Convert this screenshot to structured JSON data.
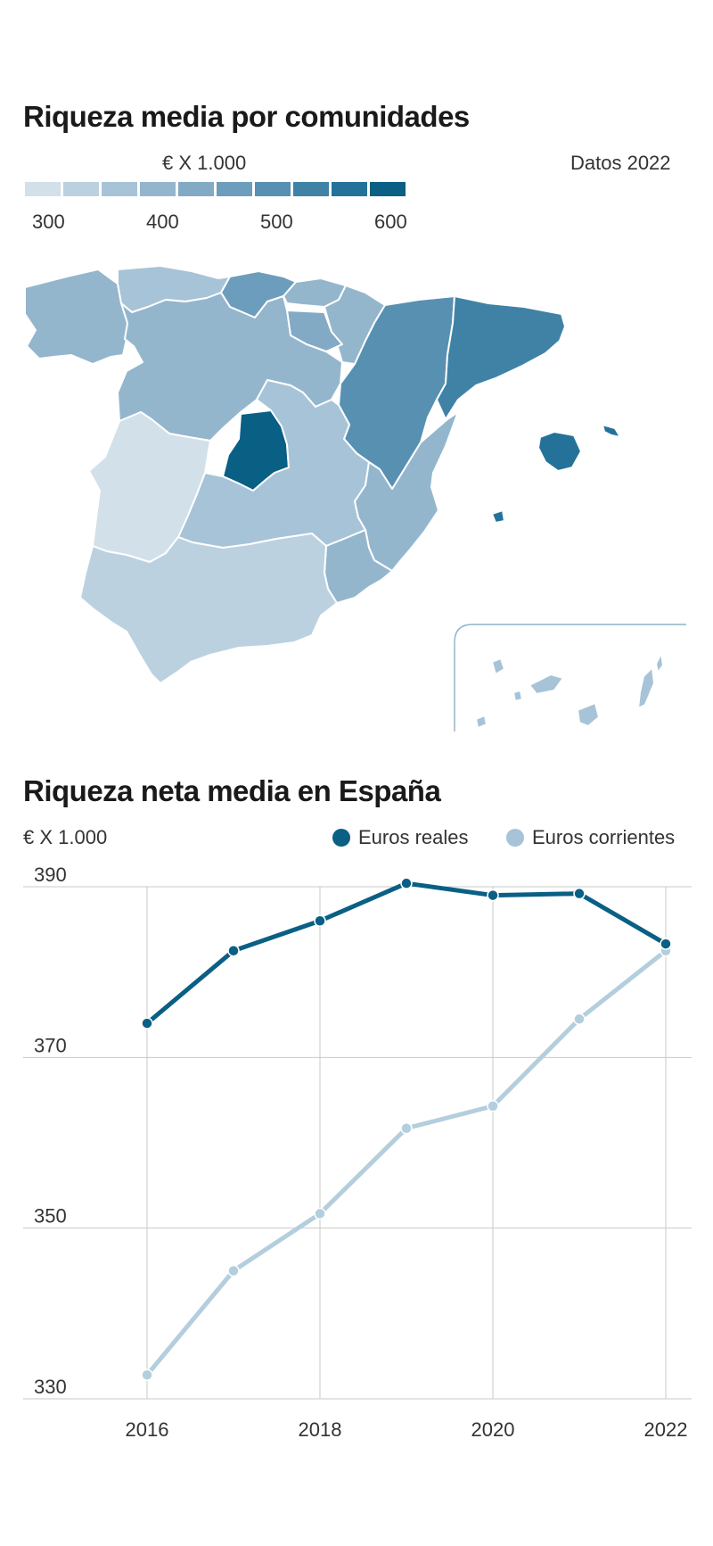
{
  "map": {
    "title": "Riqueza media por comunidades",
    "unit": "€ X 1.000",
    "year_note": "Datos 2022",
    "scale_colors": [
      "#d2e0ea",
      "#bcd1e0",
      "#a7c3d7",
      "#94b6cd",
      "#82aac5",
      "#6d9dbc",
      "#5890b2",
      "#3f82a6",
      "#24729a",
      "#0a5f84"
    ],
    "scale_labels": [
      "300",
      "400",
      "500",
      "600"
    ]
  },
  "line": {
    "title": "Riqueza neta media en España",
    "unit": "€ X 1.000"
  },
  "chart_data": {
    "type": "line",
    "x": [
      2016,
      2017,
      2018,
      2019,
      2020,
      2021,
      2022
    ],
    "series": [
      {
        "name": "Euros reales",
        "color": "#0a5f84",
        "values": [
          374,
          382.5,
          386,
          390.4,
          389,
          389.2,
          383.3
        ]
      },
      {
        "name": "Euros corrientes",
        "color": "#b3cedd",
        "values": [
          332.8,
          345,
          351.7,
          361.7,
          364.3,
          374.5,
          382.5
        ]
      }
    ],
    "xticks": [
      "2016",
      "2018",
      "2020",
      "2022"
    ],
    "yticks": [
      "390",
      "370",
      "350",
      "330"
    ],
    "ylim": [
      330,
      390
    ],
    "grid": true,
    "legend_position": "top-right"
  }
}
